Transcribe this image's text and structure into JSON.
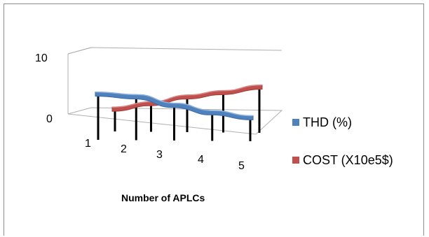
{
  "chart_data": {
    "type": "line",
    "title": "",
    "xlabel": "Number of APLCs",
    "ylabel": "",
    "categories": [
      "1",
      "2",
      "3",
      "4",
      "5"
    ],
    "ylim": [
      0,
      10
    ],
    "yticks": [
      "0",
      "10"
    ],
    "series": [
      {
        "name": "THD (%)",
        "color": "#4f81bd",
        "values": [
          6,
          5.6,
          4.2,
          3,
          2.2
        ]
      },
      {
        "name": "COST (X10e5$)",
        "color": "#c0504d",
        "values": [
          2,
          3,
          4.2,
          5,
          6
        ]
      }
    ],
    "legend_position": "right",
    "grid": false,
    "style": "3d-ribbon-with-drop-lines"
  }
}
